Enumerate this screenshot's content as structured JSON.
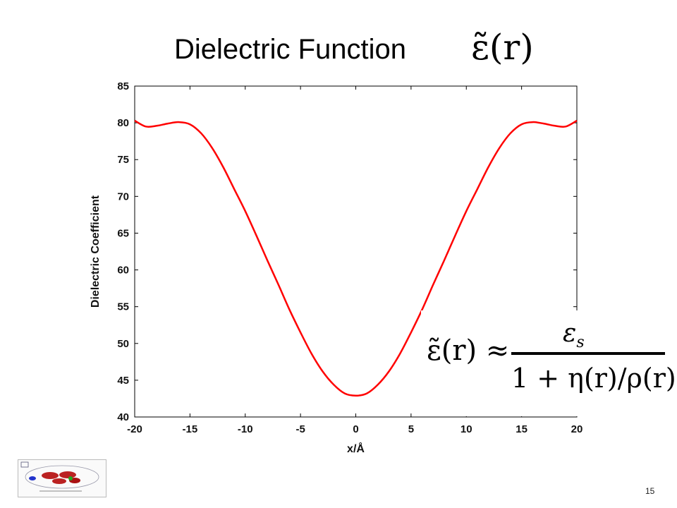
{
  "slide": {
    "title": "Dielectric Function",
    "title_math": "ε̃(r)",
    "page_number": "15"
  },
  "formula": {
    "lhs": "ε̃(r) ≈",
    "numerator": "ε",
    "numerator_sub": "s",
    "denominator": "1 + η(r)/ρ(r)"
  },
  "colors": {
    "curve": "#ff0000",
    "axis": "#000000",
    "background": "#ffffff"
  },
  "chart_data": {
    "type": "line",
    "title": "",
    "xlabel": "x/Å",
    "ylabel": "Dielectric Coefficient",
    "xlim": [
      -20,
      20
    ],
    "ylim": [
      40,
      85
    ],
    "xticks": [
      "-20",
      "-15",
      "-10",
      "-5",
      "0",
      "5",
      "10",
      "15",
      "20"
    ],
    "yticks": [
      "40",
      "45",
      "50",
      "55",
      "60",
      "65",
      "70",
      "75",
      "80",
      "85"
    ],
    "grid": false,
    "series": [
      {
        "color": "#ff0000",
        "x": [
          -20,
          -19,
          -18,
          -17,
          -16,
          -15,
          -14,
          -13,
          -12,
          -11,
          -10,
          -9,
          -8,
          -7,
          -6,
          -5,
          -4,
          -3,
          -2,
          -1,
          0,
          1,
          2,
          3,
          4,
          5,
          6,
          7,
          8,
          9,
          10,
          11,
          12,
          13,
          14,
          15,
          16,
          17,
          18,
          19,
          20
        ],
        "y": [
          80.3,
          79.5,
          79.6,
          79.9,
          80.1,
          79.8,
          78.6,
          76.6,
          74.0,
          71.0,
          68.0,
          64.7,
          61.3,
          58.0,
          54.6,
          51.5,
          48.6,
          46.2,
          44.4,
          43.2,
          42.9,
          43.2,
          44.4,
          46.2,
          48.6,
          51.5,
          54.6,
          58.0,
          61.3,
          64.7,
          68.0,
          71.0,
          74.0,
          76.6,
          78.6,
          79.8,
          80.1,
          79.9,
          79.6,
          79.5,
          80.3
        ]
      }
    ]
  }
}
